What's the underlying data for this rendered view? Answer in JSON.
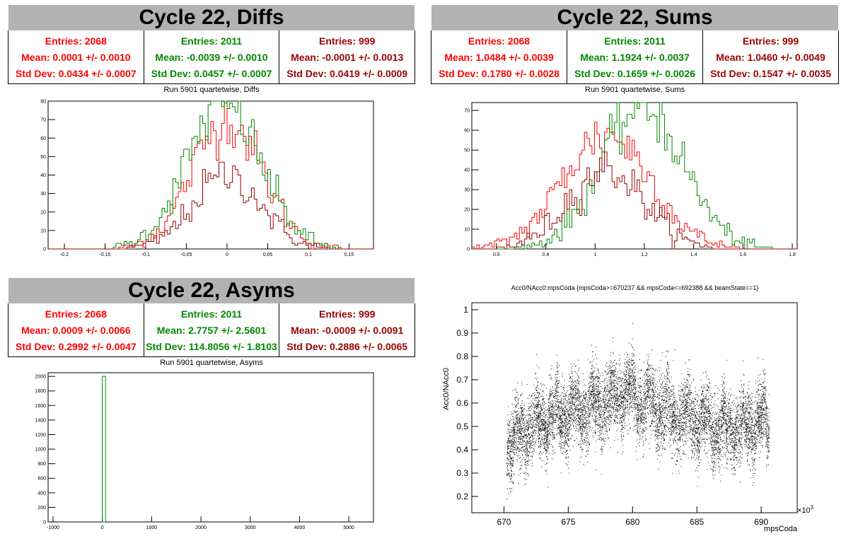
{
  "colors": {
    "red": "#ff0000",
    "green": "#008800",
    "darkred": "#990000",
    "titlebar": "#b3b3b3"
  },
  "panels": {
    "diffs": {
      "title": "Cycle 22, Diffs",
      "subtitle": "Run 5901 quartetwise, Diffs",
      "stats": [
        {
          "entries": "Entries: 2068",
          "mean": "Mean: 0.0001 +/- 0.0010",
          "std": "Std Dev: 0.0434 +/- 0.0007",
          "color": "#ff0000"
        },
        {
          "entries": "Entries: 2011",
          "mean": "Mean: -0.0039 +/- 0.0010",
          "std": "Std Dev: 0.0457 +/- 0.0007",
          "color": "#008800"
        },
        {
          "entries": "Entries: 999",
          "mean": "Mean: -0.0001 +/- 0.0013",
          "std": "Std Dev: 0.0419 +/- 0.0009",
          "color": "#990000"
        }
      ]
    },
    "sums": {
      "title": "Cycle 22, Sums",
      "subtitle": "Run 5901 quartetwise, Sums",
      "stats": [
        {
          "entries": "Entries: 2068",
          "mean": "Mean: 1.0484 +/- 0.0039",
          "std": "Std Dev: 0.1780 +/- 0.0028",
          "color": "#ff0000"
        },
        {
          "entries": "Entries: 2011",
          "mean": "Mean: 1.1924 +/- 0.0037",
          "std": "Std Dev: 0.1659 +/- 0.0026",
          "color": "#008800"
        },
        {
          "entries": "Entries: 999",
          "mean": "Mean: 1.0460 +/- 0.0049",
          "std": "Std Dev: 0.1547 +/- 0.0035",
          "color": "#990000"
        }
      ]
    },
    "asyms": {
      "title": "Cycle 22, Asyms",
      "subtitle": "Run 5901 quartetwise, Asyms",
      "stats": [
        {
          "entries": "Entries: 2068",
          "mean": "Mean: 0.0009 +/- 0.0066",
          "std": "Std Dev: 0.2992 +/- 0.0047",
          "color": "#ff0000"
        },
        {
          "entries": "Entries: 2011",
          "mean": "Mean: 2.7757 +/- 2.5601",
          "std": "Std Dev: 114.8056 +/- 1.8103",
          "color": "#008800"
        },
        {
          "entries": "Entries: 999",
          "mean": "Mean: -0.0009 +/- 0.0091",
          "std": "Std Dev: 0.2886 +/- 0.0065",
          "color": "#990000"
        }
      ]
    },
    "scatter": {
      "title": "Acc0/NAcc0:mpsCoda {mpsCoda>=670237 && mpsCoda<=692388 && beamState==1}",
      "ylabel": "Acc0/NAcc0",
      "xlabel": "mpsCoda",
      "xexp": "×10",
      "xexp_power": "3"
    }
  },
  "chart_data": [
    {
      "type": "histogram",
      "name": "diffs",
      "xlim": [
        -0.22,
        0.18
      ],
      "ylim": [
        0,
        80
      ],
      "xticks": [
        "-0.2",
        "-0.15",
        "-0.1",
        "-0.05",
        "0",
        "0.05",
        "0.1",
        "0.15"
      ],
      "xtick_values": [
        -0.2,
        -0.15,
        -0.1,
        -0.05,
        0,
        0.05,
        0.1,
        0.15
      ],
      "yticks": [
        0,
        10,
        20,
        30,
        40,
        50,
        60,
        70,
        80
      ],
      "series": [
        {
          "color": "#ff0000",
          "mean": 0.0001,
          "std": 0.0434,
          "entries": 2068,
          "peak": 70
        },
        {
          "color": "#008800",
          "mean": -0.0039,
          "std": 0.0457,
          "entries": 2011,
          "peak": 78
        },
        {
          "color": "#990000",
          "mean": -0.0001,
          "std": 0.0419,
          "entries": 999,
          "peak": 40
        }
      ]
    },
    {
      "type": "histogram",
      "name": "sums",
      "xlim": [
        0.5,
        1.82
      ],
      "ylim": [
        0,
        74
      ],
      "xticks": [
        "0.6",
        "0.8",
        "1",
        "1.2",
        "1.4",
        "1.6",
        "1.8"
      ],
      "xtick_values": [
        0.6,
        0.8,
        1.0,
        1.2,
        1.4,
        1.6,
        1.8
      ],
      "yticks": [
        0,
        10,
        20,
        30,
        40,
        50,
        60,
        70
      ],
      "series": [
        {
          "color": "#ff0000",
          "mean": 1.0484,
          "std": 0.178,
          "entries": 2068,
          "peak": 58
        },
        {
          "color": "#008800",
          "mean": 1.1924,
          "std": 0.1659,
          "entries": 2011,
          "peak": 72
        },
        {
          "color": "#990000",
          "mean": 1.046,
          "std": 0.1547,
          "entries": 999,
          "peak": 40
        }
      ]
    },
    {
      "type": "histogram",
      "name": "asyms",
      "xlim": [
        -1100,
        5500
      ],
      "ylim": [
        0,
        2050
      ],
      "xticks": [
        "-1000",
        "0",
        "1000",
        "2000",
        "3000",
        "4000",
        "5000"
      ],
      "xtick_values": [
        -1000,
        0,
        1000,
        2000,
        3000,
        4000,
        5000
      ],
      "yticks": [
        0,
        200,
        400,
        600,
        800,
        1000,
        1200,
        1400,
        1600,
        1800,
        2000
      ],
      "bar": {
        "x0": 0,
        "x1": 66,
        "value": 2000,
        "color": "#008800"
      }
    },
    {
      "type": "scatter",
      "name": "scatter",
      "xlim": [
        667.5,
        692.8
      ],
      "ylim": [
        0.13,
        1.03
      ],
      "xticks": [
        "670",
        "675",
        "680",
        "685",
        "690"
      ],
      "xtick_values": [
        670,
        675,
        680,
        685,
        690
      ],
      "yticks": [
        "0.2",
        "0.3",
        "0.4",
        "0.5",
        "0.6",
        "0.7",
        "0.8",
        "0.9",
        "1"
      ],
      "ytick_values": [
        0.2,
        0.3,
        0.4,
        0.5,
        0.6,
        0.7,
        0.8,
        0.9,
        1.0
      ],
      "x_range_data": [
        670.2,
        690.6
      ],
      "trend": [
        [
          670.2,
          0.42
        ],
        [
          672,
          0.5
        ],
        [
          674,
          0.55
        ],
        [
          676,
          0.57
        ],
        [
          678,
          0.6
        ],
        [
          679.5,
          0.65
        ],
        [
          681,
          0.6
        ],
        [
          683,
          0.55
        ],
        [
          685,
          0.53
        ],
        [
          687,
          0.48
        ],
        [
          688.5,
          0.5
        ],
        [
          690.6,
          0.52
        ]
      ]
    }
  ]
}
